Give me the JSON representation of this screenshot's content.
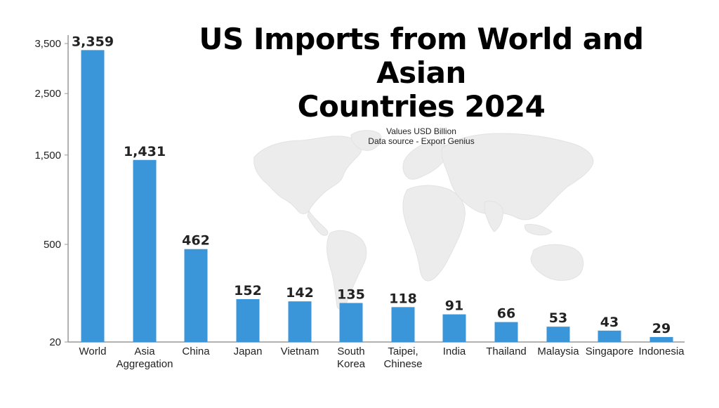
{
  "title_line1": "US Imports from World and Asian",
  "title_line2": "Countries 2024",
  "subtitle_line1": "Values USD Billion",
  "subtitle_line2": "Data source - Export Genius",
  "chart_data": {
    "type": "bar",
    "title": "US Imports from World and Asian Countries 2024",
    "subtitle": "Values USD Billion / Data source - Export Genius",
    "categories": [
      [
        "World"
      ],
      [
        "Asia",
        "Aggregation"
      ],
      [
        "China"
      ],
      [
        "Japan"
      ],
      [
        "Vietnam"
      ],
      [
        "South",
        "Korea"
      ],
      [
        "Taipei,",
        "Chinese"
      ],
      [
        "India"
      ],
      [
        "Thailand"
      ],
      [
        "Malaysia"
      ],
      [
        "Singapore"
      ],
      [
        "Indonesia"
      ]
    ],
    "values": [
      3359,
      1431,
      462,
      152,
      142,
      135,
      118,
      91,
      66,
      53,
      43,
      29
    ],
    "value_labels": [
      "3,359",
      "1,431",
      "462",
      "152",
      "142",
      "135",
      "118",
      "91",
      "66",
      "53",
      "43",
      "29"
    ],
    "y_ticks": [
      20,
      500,
      1500,
      2500,
      3500
    ],
    "y_tick_labels": [
      "20",
      "500",
      "1,500",
      "2,500",
      "3,500"
    ],
    "y_scale": "sqrt",
    "bar_color": "#3a96d9",
    "background_image": "world-map",
    "grid": false,
    "legend": "none"
  }
}
